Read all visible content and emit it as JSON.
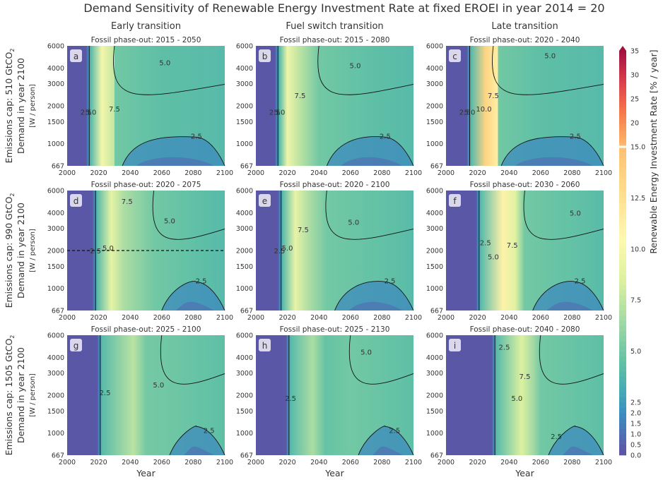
{
  "chart_data": {
    "type": "heatmap",
    "title": "Demand Sensitivity of Renewable Energy Investment Rate at fixed EROEI in year 2014 = 20",
    "xlabel": "Year",
    "x_ticks": [
      "2000",
      "2020",
      "2040",
      "2060",
      "2080",
      "2100"
    ],
    "y_ticks": [
      "667",
      "1000",
      "1500",
      "2000",
      "3000",
      "4000",
      "6000"
    ],
    "xlim": [
      2000,
      2100
    ],
    "ylim": [
      667,
      6000
    ],
    "y_scale": "log",
    "columns": [
      "Early transition",
      "Fuel switch transition",
      "Late transition"
    ],
    "rows": [
      {
        "main": "Emissions cap: 510 GtCO",
        "sub": "2",
        "line2": "Demand in year 2100",
        "unit": "[W / person]"
      },
      {
        "main": "Emissions cap: 990 GtCO",
        "sub": "2",
        "line2": "Demand in year 2100",
        "unit": "[W / person]"
      },
      {
        "main": "Emissions cap: 1505 GtCO",
        "sub": "2",
        "line2": "Demand in year 2100",
        "unit": "[W / person]"
      }
    ],
    "panels": [
      {
        "letter": "a",
        "subtitle": "Fossil phase-out: 2015 - 2050",
        "start": 2013,
        "dip": 2022,
        "peak": 9.8,
        "rise": [
          2030,
          2060
        ],
        "labels": [
          [
            "2.5",
            2082,
            1100
          ],
          [
            "5.0",
            2062,
            4200
          ],
          [
            "7.5",
            2030,
            1800
          ],
          [
            "5.0",
            2015,
            1700
          ],
          [
            "2.5",
            2012,
            1700
          ]
        ]
      },
      {
        "letter": "b",
        "subtitle": "Fossil phase-out: 2015 - 2080",
        "start": 2013,
        "dip": 2020,
        "peak": 9.5,
        "rise": [
          2040,
          2075
        ],
        "labels": [
          [
            "2.5",
            2082,
            1100
          ],
          [
            "5.0",
            2063,
            4000
          ],
          [
            "7.5",
            2028,
            2300
          ],
          [
            "5.0",
            2015,
            1700
          ],
          [
            "2.5",
            2012,
            1700
          ]
        ]
      },
      {
        "letter": "c",
        "subtitle": "Fossil phase-out: 2020 - 2040",
        "start": 2014,
        "dip": 2025,
        "peak": 13.5,
        "rise": [
          2030,
          2060
        ],
        "labels": [
          [
            "2.5",
            2082,
            1100
          ],
          [
            "5.0",
            2066,
            4800
          ],
          [
            "7.5",
            2030,
            2300
          ],
          [
            "10.0",
            2024,
            1800
          ],
          [
            "5.0",
            2015,
            1700
          ],
          [
            "2.5",
            2012,
            1700
          ]
        ]
      },
      {
        "letter": "d",
        "subtitle": "Fossil phase-out: 2020 - 2075",
        "start": 2017,
        "dip": 2028,
        "peak": 9.0,
        "rise": [
          2055,
          2085
        ],
        "dashed": 2000,
        "labels": [
          [
            "2.5",
            2085,
            1100
          ],
          [
            "5.0",
            2065,
            3300
          ],
          [
            "7.5",
            2038,
            4700
          ],
          [
            "5.0",
            2026,
            2000
          ],
          [
            "2.5",
            2018,
            1900
          ]
        ]
      },
      {
        "letter": "e",
        "subtitle": "Fossil phase-out: 2020 - 2100",
        "start": 2015,
        "dip": 2025,
        "peak": 9.2,
        "rise": [
          2045,
          2090
        ],
        "labels": [
          [
            "2.5",
            2085,
            1100
          ],
          [
            "5.0",
            2062,
            3200
          ],
          [
            "7.5",
            2030,
            2800
          ],
          [
            "5.0",
            2020,
            2000
          ],
          [
            "2.5",
            2015,
            1900
          ]
        ]
      },
      {
        "letter": "f",
        "subtitle": "Fossil phase-out: 2030 - 2060",
        "start": 2020,
        "dip": 2036,
        "peak": 11.0,
        "rise": [
          2050,
          2090
        ],
        "labels": [
          [
            "2.5",
            2085,
            1100
          ],
          [
            "5.0",
            2082,
            3800
          ],
          [
            "7.5",
            2042,
            2100
          ],
          [
            "5.0",
            2030,
            1700
          ],
          [
            "2.5",
            2025,
            2200
          ]
        ]
      },
      {
        "letter": "g",
        "subtitle": "Fossil phase-out: 2025 - 2100",
        "start": 2020,
        "dip": 2042,
        "peak": 7.3,
        "rise": [
          2060,
          2100
        ],
        "labels": [
          [
            "2.5",
            2090,
            1000
          ],
          [
            "5.0",
            2058,
            2300
          ],
          [
            "2.5",
            2024,
            2000
          ]
        ]
      },
      {
        "letter": "h",
        "subtitle": "Fossil phase-out: 2025 - 2130",
        "start": 2020,
        "dip": 2036,
        "peak": 6.8,
        "rise": [
          2060,
          2100
        ],
        "labels": [
          [
            "2.5",
            2088,
            1000
          ],
          [
            "5.0",
            2070,
            4200
          ],
          [
            "2.5",
            2022,
            1800
          ]
        ]
      },
      {
        "letter": "i",
        "subtitle": "Fossil phase-out: 2040 - 2080",
        "start": 2030,
        "dip": 2048,
        "peak": 8.5,
        "rise": [
          2060,
          2100
        ],
        "labels": [
          [
            "2.5",
            2070,
            900
          ],
          [
            "7.5",
            2050,
            2700
          ],
          [
            "5.0",
            2045,
            1800
          ],
          [
            "2.5",
            2037,
            4600
          ]
        ]
      }
    ],
    "colorbar": {
      "label": "Renewable Energy Investment Rate [% / year]",
      "ticks": [
        "0.0",
        "0.5",
        "1.0",
        "1.5",
        "2.0",
        "2.5",
        "5.0",
        "7.5",
        "10.0",
        "12.5",
        "15.0",
        "20",
        "25",
        "30",
        "35"
      ],
      "colors": {
        "low": "#5c51a3",
        "mid_low": "#3a8fc0",
        "mid": "#62c2a4",
        "mid_high": "#c6e8a0",
        "high": "#fff8b0",
        "orange": "#fdb165",
        "red": "#e0424c",
        "dark_red": "#a3103f"
      }
    }
  }
}
